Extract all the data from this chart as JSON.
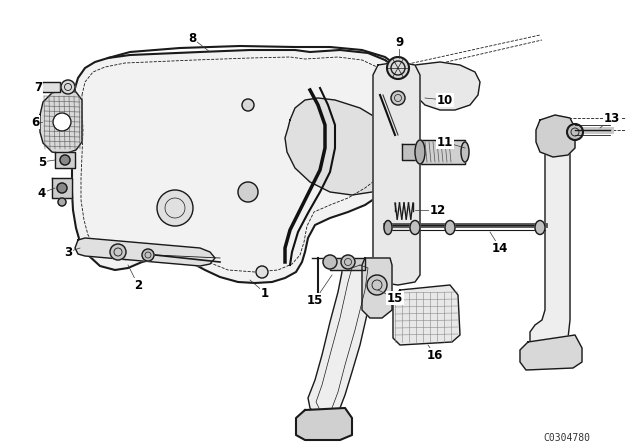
{
  "background_color": "#ffffff",
  "diagram_code": "C0304780",
  "line_color": "#1a1a1a",
  "label_color": "#000000",
  "font_size": 8.5,
  "diagram_font_size": 7,
  "lw_main": 1.0,
  "lw_thin": 0.6,
  "lw_thick": 1.5,
  "housing_fill": "#f0f0f0",
  "detail_fill": "#d8d8d8",
  "dark_fill": "#444444"
}
